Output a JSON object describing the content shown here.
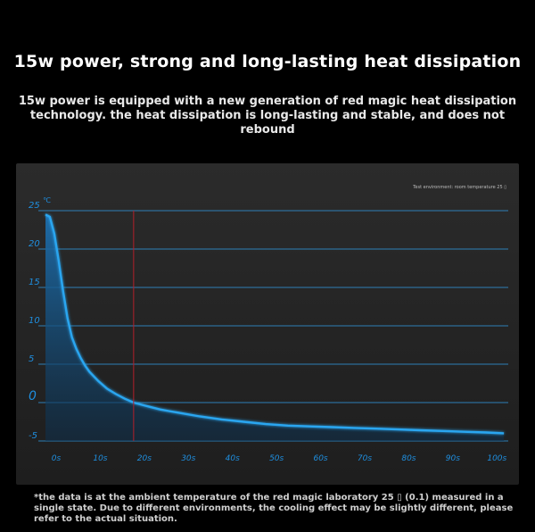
{
  "headline": "15w power, strong and long-lasting heat dissipation",
  "subhead": "15w power is equipped with a new generation of red magic heat dissipation technology. the heat dissipation is long-lasting and stable, and does not rebound",
  "footnote": "*the data is at the ambient temperature of the red magic laboratory 25 ▯ (0.1) measured in a single state. Due to different environments, the cooling effect may be slightly different, please refer to the actual situation.",
  "chart_data": {
    "type": "area",
    "title": "",
    "annotation": "Test environment: room temperature 25 ▯",
    "ylabel": "℃",
    "xlabel": "",
    "xlim": [
      0,
      105
    ],
    "ylim": [
      -5,
      25
    ],
    "x_ticks": [
      0,
      10,
      20,
      30,
      40,
      50,
      60,
      70,
      80,
      90,
      100
    ],
    "x_tick_labels": [
      "0s",
      "10s",
      "20s",
      "30s",
      "40s",
      "50s",
      "60s",
      "70s",
      "80s",
      "90s",
      "100s"
    ],
    "y_ticks": [
      -5,
      0,
      5,
      10,
      15,
      20,
      25
    ],
    "y_tick_labels": [
      "-5",
      "0",
      "5",
      "10",
      "15",
      "20",
      "25"
    ],
    "grid": true,
    "reference_line_x": 20,
    "colors": {
      "line": "#2aa6f0",
      "fill_top": "#1d6fae",
      "grid": "#2f8fd0",
      "reference": "#b3202a"
    },
    "series": [
      {
        "name": "",
        "x": [
          0,
          1,
          2,
          3,
          4,
          5,
          6,
          7,
          8,
          9,
          10,
          12,
          14,
          16,
          18,
          20,
          22,
          24,
          26,
          28,
          30,
          35,
          40,
          45,
          50,
          55,
          60,
          65,
          70,
          75,
          80,
          85,
          90,
          95,
          100,
          104
        ],
        "y": [
          24.5,
          24.2,
          22,
          18.5,
          14.5,
          11,
          8.5,
          7,
          5.8,
          4.8,
          4,
          2.8,
          1.8,
          1.1,
          0.5,
          0,
          -0.3,
          -0.6,
          -0.9,
          -1.1,
          -1.3,
          -1.8,
          -2.2,
          -2.5,
          -2.8,
          -3.0,
          -3.1,
          -3.2,
          -3.3,
          -3.4,
          -3.5,
          -3.6,
          -3.7,
          -3.8,
          -3.9,
          -4.0
        ]
      }
    ]
  }
}
